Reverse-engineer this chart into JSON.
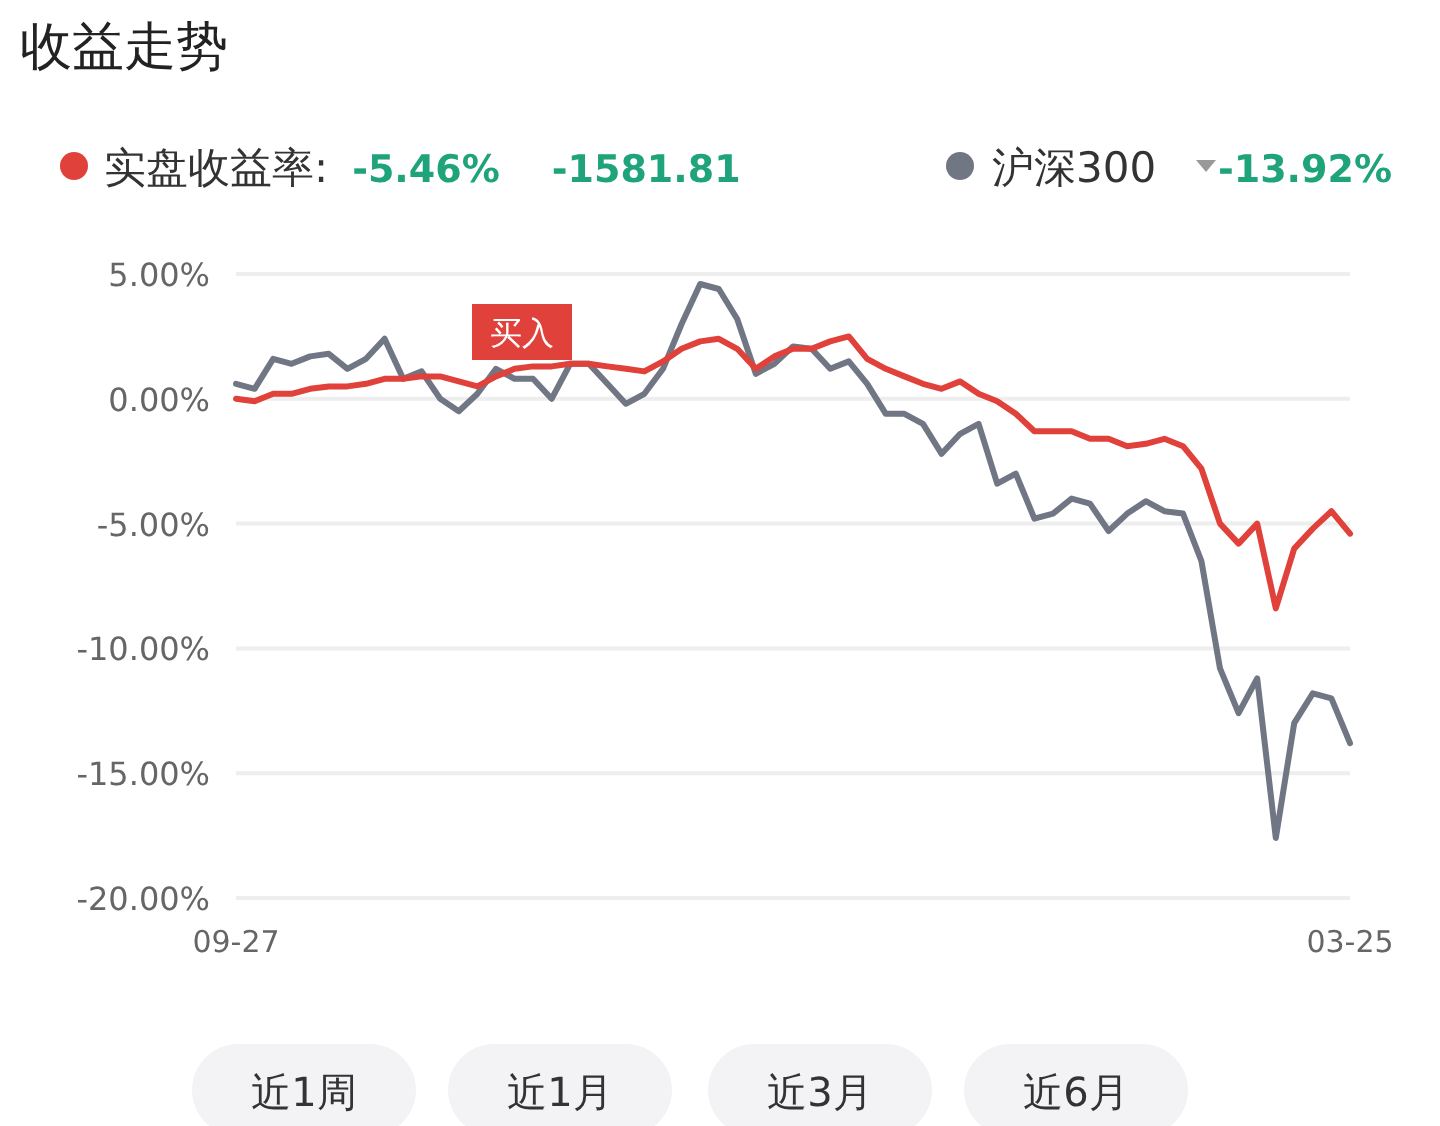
{
  "chart_data": {
    "type": "line",
    "title": "收益走势",
    "categories": [
      "09-27",
      null,
      null,
      null,
      null,
      null,
      null,
      null,
      null,
      null,
      null,
      null,
      null,
      null,
      null,
      null,
      null,
      null,
      null,
      null,
      null,
      null,
      null,
      null,
      null,
      null,
      null,
      null,
      null,
      null,
      null,
      null,
      null,
      null,
      null,
      null,
      null,
      null,
      null,
      null,
      null,
      null,
      null,
      null,
      null,
      null,
      null,
      null,
      null,
      null,
      null,
      null,
      null,
      null,
      null,
      null,
      null,
      null,
      null,
      null,
      "03-25"
    ],
    "series": [
      {
        "name": "实盘收益率:",
        "color": "#e0413a",
        "values": [
          0.0,
          -0.1,
          0.2,
          0.2,
          0.4,
          0.5,
          0.5,
          0.6,
          0.8,
          0.8,
          0.9,
          0.9,
          0.7,
          0.5,
          0.9,
          1.2,
          1.3,
          1.3,
          1.4,
          1.4,
          1.3,
          1.2,
          1.1,
          1.5,
          2.0,
          2.3,
          2.4,
          2.0,
          1.2,
          1.7,
          2.0,
          2.0,
          2.3,
          2.5,
          1.6,
          1.2,
          0.9,
          0.6,
          0.4,
          0.7,
          0.2,
          -0.1,
          -0.6,
          -1.3,
          -1.3,
          -1.3,
          -1.6,
          -1.6,
          -1.9,
          -1.8,
          -1.6,
          -1.9,
          -2.8,
          -5.0,
          -5.8,
          -5.0,
          -8.4,
          -6.0,
          -5.2,
          -4.5,
          -5.4
        ]
      },
      {
        "name": "沪深300",
        "color": "#707684",
        "values": [
          0.6,
          0.4,
          1.6,
          1.4,
          1.7,
          1.8,
          1.2,
          1.6,
          2.4,
          0.8,
          1.1,
          0.0,
          -0.5,
          0.2,
          1.2,
          0.8,
          0.8,
          0.0,
          1.4,
          1.4,
          0.6,
          -0.2,
          0.2,
          1.2,
          3.0,
          4.6,
          4.4,
          3.2,
          1.0,
          1.4,
          2.1,
          2.0,
          1.2,
          1.5,
          0.6,
          -0.6,
          -0.6,
          -1.0,
          -2.2,
          -1.4,
          -1.0,
          -3.4,
          -3.0,
          -4.8,
          -4.6,
          -4.0,
          -4.2,
          -5.3,
          -4.6,
          -4.1,
          -4.5,
          -4.6,
          -6.5,
          -10.8,
          -12.6,
          -11.2,
          -17.6,
          -13.0,
          -11.8,
          -12.0,
          -13.8
        ]
      }
    ],
    "ylim": [
      -20,
      5
    ],
    "yticks": [
      {
        "value": 5,
        "label": "5.00%"
      },
      {
        "value": 0,
        "label": "0.00%"
      },
      {
        "value": -5,
        "label": "-5.00%"
      },
      {
        "value": -10,
        "label": "-10.00%"
      },
      {
        "value": -15,
        "label": "-15.00%"
      },
      {
        "value": -20,
        "label": "-20.00%"
      }
    ],
    "grid": "y",
    "legend": "top",
    "marker": "none",
    "line_style": "solid",
    "annotations": [
      "-5.46%",
      "-1581.81",
      "-13.92%",
      "买入",
      "近1周",
      "近1月",
      "近3月",
      "近6月"
    ]
  }
}
